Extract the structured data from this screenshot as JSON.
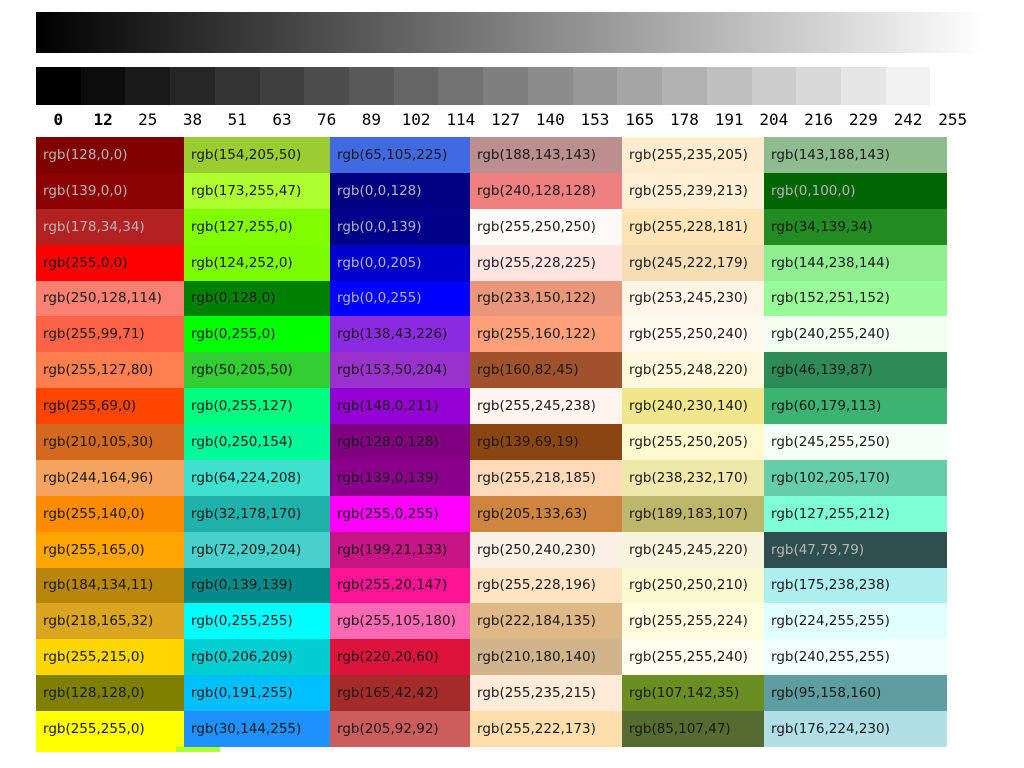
{
  "chart_data": [
    {
      "type": "heatmap",
      "name": "continuous-grayscale-ramp",
      "orientation": "horizontal",
      "start_color": "rgb(0,0,0)",
      "end_color": "rgb(255,255,255)"
    },
    {
      "type": "heatmap",
      "name": "stepped-grayscale-ramp",
      "orientation": "horizontal",
      "values": [
        0,
        12,
        25,
        38,
        51,
        63,
        76,
        89,
        102,
        114,
        127,
        140,
        153,
        165,
        178,
        191,
        204,
        216,
        229,
        242,
        255
      ],
      "tick_labels": [
        "0",
        "12",
        "25",
        "38",
        "51",
        "63",
        "76",
        "89",
        "102",
        "114",
        "127",
        "140",
        "153",
        "165",
        "178",
        "191",
        "204",
        "216",
        "229",
        "242",
        "255"
      ],
      "value_range": [
        0,
        255
      ]
    },
    {
      "type": "table",
      "name": "color-swatch-grid",
      "rows": 17,
      "columns": 6,
      "cells_by_column": [
        [
          "rgb(128,0,0)",
          "rgb(139,0,0)",
          "rgb(178,34,34)",
          "rgb(255,0,0)",
          "rgb(250,128,114)",
          "rgb(255,99,71)",
          "rgb(255,127,80)",
          "rgb(255,69,0)",
          "rgb(210,105,30)",
          "rgb(244,164,96)",
          "rgb(255,140,0)",
          "rgb(255,165,0)",
          "rgb(184,134,11)",
          "rgb(218,165,32)",
          "rgb(255,215,0)",
          "rgb(128,128,0)",
          "rgb(255,255,0)"
        ],
        [
          "rgb(154,205,50)",
          "rgb(173,255,47)",
          "rgb(127,255,0)",
          "rgb(124,252,0)",
          "rgb(0,128,0)",
          "rgb(0,255,0)",
          "rgb(50,205,50)",
          "rgb(0,255,127)",
          "rgb(0,250,154)",
          "rgb(64,224,208)",
          "rgb(32,178,170)",
          "rgb(72,209,204)",
          "rgb(0,139,139)",
          "rgb(0,255,255)",
          "rgb(0,206,209)",
          "rgb(0,191,255)",
          "rgb(30,144,255)"
        ],
        [
          "rgb(65,105,225)",
          "rgb(0,0,128)",
          "rgb(0,0,139)",
          "rgb(0,0,205)",
          "rgb(0,0,255)",
          "rgb(138,43,226)",
          "rgb(153,50,204)",
          "rgb(148,0,211)",
          "rgb(128,0,128)",
          "rgb(139,0,139)",
          "rgb(255,0,255)",
          "rgb(199,21,133)",
          "rgb(255,20,147)",
          "rgb(255,105,180)",
          "rgb(220,20,60)",
          "rgb(165,42,42)",
          "rgb(205,92,92)"
        ],
        [
          "rgb(188,143,143)",
          "rgb(240,128,128)",
          "rgb(255,250,250)",
          "rgb(255,228,225)",
          "rgb(233,150,122)",
          "rgb(255,160,122)",
          "rgb(160,82,45)",
          "rgb(255,245,238)",
          "rgb(139,69,19)",
          "rgb(255,218,185)",
          "rgb(205,133,63)",
          "rgb(250,240,230)",
          "rgb(255,228,196)",
          "rgb(222,184,135)",
          "rgb(210,180,140)",
          "rgb(255,235,215)",
          "rgb(255,222,173)"
        ],
        [
          "rgb(255,235,205)",
          "rgb(255,239,213)",
          "rgb(255,228,181)",
          "rgb(245,222,179)",
          "rgb(253,245,230)",
          "rgb(255,250,240)",
          "rgb(255,248,220)",
          "rgb(240,230,140)",
          "rgb(255,250,205)",
          "rgb(238,232,170)",
          "rgb(189,183,107)",
          "rgb(245,245,220)",
          "rgb(250,250,210)",
          "rgb(255,255,224)",
          "rgb(255,255,240)",
          "rgb(107,142,35)",
          "rgb(85,107,47)"
        ],
        [
          "rgb(143,188,143)",
          "rgb(0,100,0)",
          "rgb(34,139,34)",
          "rgb(144,238,144)",
          "rgb(152,251,152)",
          "rgb(240,255,240)",
          "rgb(46,139,87)",
          "rgb(60,179,113)",
          "rgb(245,255,250)",
          "rgb(102,205,170)",
          "rgb(127,255,212)",
          "rgb(47,79,79)",
          "rgb(175,238,238)",
          "rgb(224,255,255)",
          "rgb(240,255,255)",
          "rgb(95,158,160)",
          "rgb(176,224,230)"
        ]
      ],
      "light_text_cells": [
        "rgb(128,0,0)",
        "rgb(139,0,0)",
        "rgb(178,34,34)",
        "rgb(0,0,128)",
        "rgb(0,0,139)",
        "rgb(0,0,205)",
        "rgb(0,0,255)",
        "rgb(0,100,0)",
        "rgb(47,79,79)"
      ],
      "text_color_dark": "#1a1a1a",
      "text_color_light": "#b5b5b5"
    },
    {
      "type": "table",
      "name": "partial-bottom-row",
      "rows": 1,
      "columns": 2,
      "colors": [
        "rgb(255,255,0)",
        "rgb(173,255,47)"
      ]
    }
  ]
}
